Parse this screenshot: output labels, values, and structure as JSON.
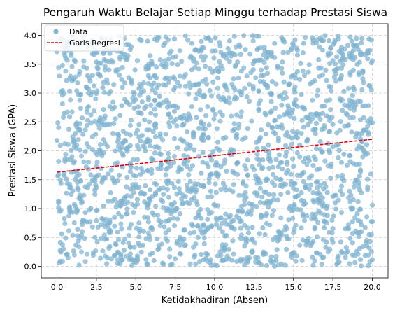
{
  "chart_data": {
    "type": "scatter",
    "title": "Pengaruh Waktu Belajar Setiap Minggu terhadap Prestasi Siswa",
    "xlabel": "Ketidakhadiran (Absen)",
    "ylabel": "Prestasi Siswa (GPA)",
    "xlim": [
      -1.0,
      21.0
    ],
    "ylim": [
      -0.2,
      4.2
    ],
    "xticks": [
      "0.0",
      "2.5",
      "5.0",
      "7.5",
      "10.0",
      "12.5",
      "15.0",
      "17.5",
      "20.0"
    ],
    "yticks": [
      "0.0",
      "0.5",
      "1.0",
      "1.5",
      "2.0",
      "2.5",
      "3.0",
      "3.5",
      "4.0"
    ],
    "grid": true,
    "legend_position": "top-left",
    "colors": {
      "scatter": "#7fb3d0",
      "regression": "#e8000b"
    },
    "series": [
      {
        "name": "Data",
        "kind": "scatter",
        "point_count": 2000,
        "x_range": [
          0,
          20
        ],
        "y_range": [
          0,
          4
        ]
      },
      {
        "name": "Garis Regresi",
        "kind": "line",
        "x": [
          0,
          20
        ],
        "y": [
          1.63,
          2.2
        ]
      }
    ]
  }
}
